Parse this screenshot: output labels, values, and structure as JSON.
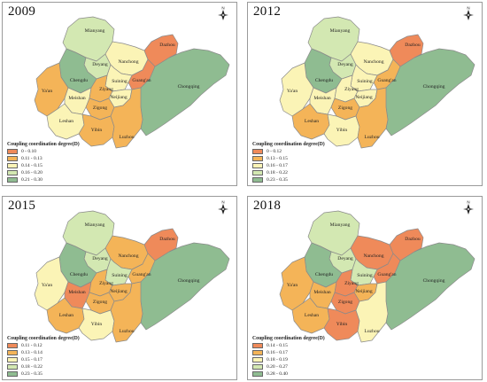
{
  "panels": [
    {
      "year": "2009",
      "legend": {
        "title": "Coupling coordination degree(D)",
        "classes": [
          "0 - 0.10",
          "0.11 - 0.13",
          "0.14 - 0.15",
          "0.16 - 0.20",
          "0.21 - 0.30"
        ]
      },
      "city_class": {
        "Mianyang": 3,
        "Deyang": 3,
        "Chengdu": 4,
        "Nanchong": 2,
        "Dazhou": 0,
        "Guang'an": 0,
        "Suining": 2,
        "Ya'an": 1,
        "Meishan": 2,
        "Ziyang": 1,
        "Neijiang": 2,
        "Leshan": 2,
        "Zigong": 1,
        "Yibin": 1,
        "Luzhou": 1,
        "Chongqing": 4
      }
    },
    {
      "year": "2012",
      "legend": {
        "title": "Coupling coordination degree(D)",
        "classes": [
          "0 - 0.12",
          "0.13 - 0.15",
          "0.16 - 0.17",
          "0.18 - 0.22",
          "0.23 - 0.35"
        ]
      },
      "city_class": {
        "Mianyang": 3,
        "Deyang": 3,
        "Chengdu": 4,
        "Nanchong": 2,
        "Dazhou": 0,
        "Guang'an": 1,
        "Suining": 2,
        "Ya'an": 2,
        "Meishan": 2,
        "Ziyang": 2,
        "Neijiang": 2,
        "Leshan": 1,
        "Zigong": 1,
        "Yibin": 2,
        "Luzhou": 1,
        "Chongqing": 4
      }
    },
    {
      "year": "2015",
      "legend": {
        "title": "Coupling coordination degree(D)",
        "classes": [
          "0.11 - 0.12",
          "0.13 - 0.14",
          "0.15 - 0.17",
          "0.18 - 0.22",
          "0.23 - 0.35"
        ]
      },
      "city_class": {
        "Mianyang": 3,
        "Deyang": 3,
        "Chengdu": 4,
        "Nanchong": 1,
        "Dazhou": 0,
        "Guang'an": 1,
        "Suining": 3,
        "Ya'an": 2,
        "Meishan": 0,
        "Ziyang": 1,
        "Neijiang": 1,
        "Leshan": 1,
        "Zigong": 1,
        "Yibin": 2,
        "Luzhou": 1,
        "Chongqing": 4
      }
    },
    {
      "year": "2018",
      "legend": {
        "title": "Coupling coordination degree(D)",
        "classes": [
          "0.14 - 0.15",
          "0.16 - 0.17",
          "0.18 - 0.19",
          "0.20 - 0.27",
          "0.28 - 0.40"
        ]
      },
      "city_class": {
        "Mianyang": 3,
        "Deyang": 3,
        "Chengdu": 4,
        "Nanchong": 0,
        "Dazhou": 0,
        "Guang'an": 0,
        "Suining": 3,
        "Ya'an": 1,
        "Meishan": 1,
        "Ziyang": 0,
        "Neijiang": 1,
        "Leshan": 1,
        "Zigong": 0,
        "Yibin": 0,
        "Luzhou": 2,
        "Chongqing": 4
      }
    }
  ],
  "palette": [
    "#ef8a5a",
    "#f4b458",
    "#fbf4b6",
    "#d3e8b2",
    "#8fbc91"
  ],
  "north_label": "N",
  "north_icon": "north-arrow-icon"
}
